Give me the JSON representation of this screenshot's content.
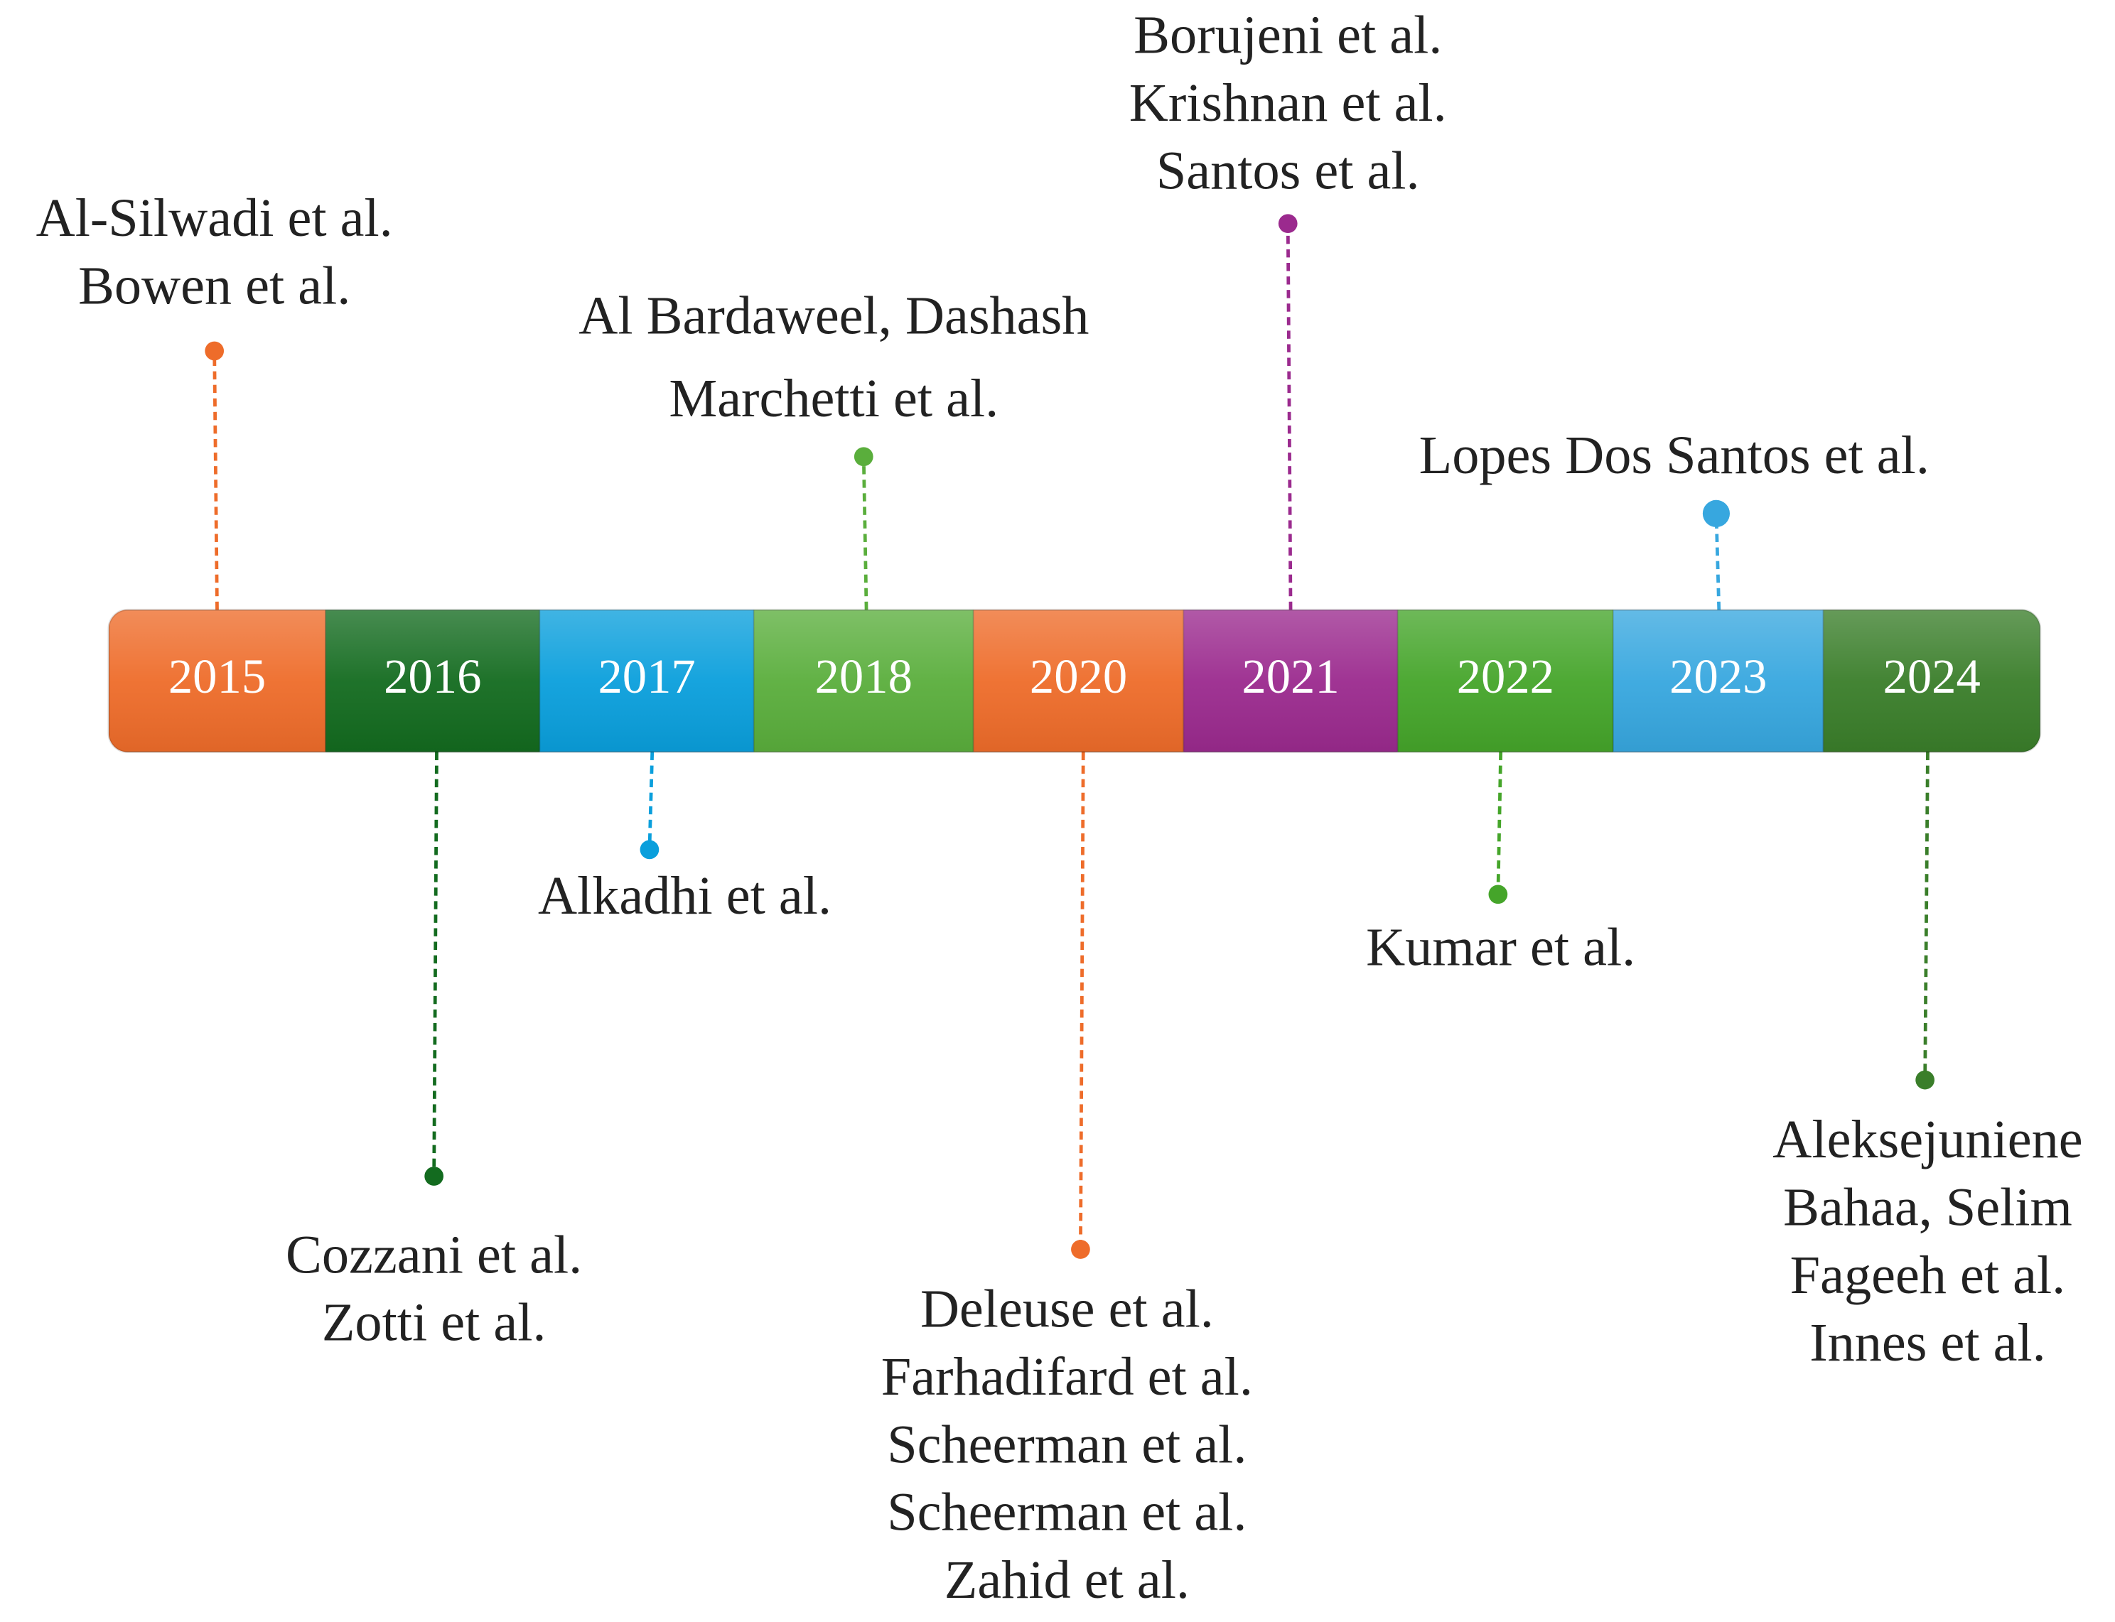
{
  "timeline": [
    {
      "year": "2015",
      "authors": [
        "Al-Silwadi et al.",
        "Bowen et al."
      ]
    },
    {
      "year": "2016",
      "authors": [
        "Cozzani et al.",
        "Zotti et al."
      ]
    },
    {
      "year": "2017",
      "authors": [
        "Alkadhi et al."
      ]
    },
    {
      "year": "2018",
      "authors": [
        "Al Bardaweel, Dashash",
        "Marchetti et al."
      ]
    },
    {
      "year": "2020",
      "authors": [
        "Deleuse et al.",
        "Farhadifard et al.",
        "Scheerman et al.",
        "Scheerman et al.",
        "Zahid et al."
      ]
    },
    {
      "year": "2021",
      "authors": [
        "Borujeni et al.",
        "Krishnan et al.",
        "Santos et al."
      ]
    },
    {
      "year": "2022",
      "authors": [
        "Kumar et al."
      ]
    },
    {
      "year": "2023",
      "authors": [
        "Lopes Dos Santos et al."
      ]
    },
    {
      "year": "2024",
      "authors": [
        "Aleksejuniene",
        "Bahaa, Selim",
        "Fageeh et al.",
        "Innes et al."
      ]
    }
  ]
}
